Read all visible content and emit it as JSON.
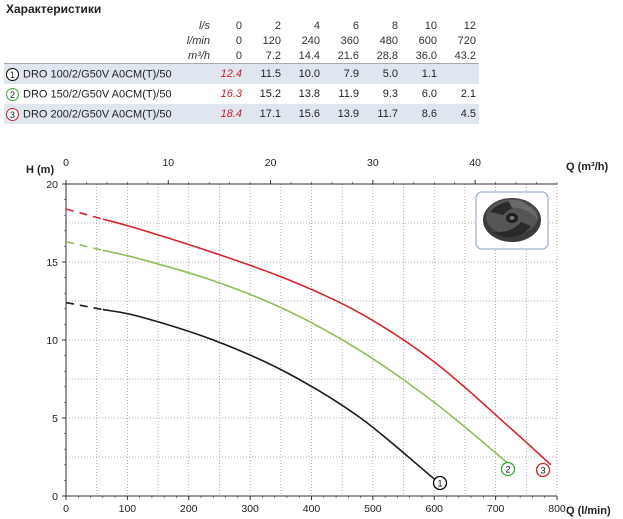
{
  "header": {
    "title": "Характеристики"
  },
  "table": {
    "unit_rows": [
      {
        "unit": "l/s",
        "values": [
          "0",
          "2",
          "4",
          "6",
          "8",
          "10",
          "12"
        ]
      },
      {
        "unit": "l/min",
        "values": [
          "0",
          "120",
          "240",
          "360",
          "480",
          "600",
          "720"
        ]
      },
      {
        "unit": "m³/h",
        "values": [
          "0",
          "7.2",
          "14.4",
          "21.6",
          "28.8",
          "36.0",
          "43.2"
        ]
      }
    ],
    "models": [
      {
        "badge": "1",
        "name": "DRO 100/2/G50V A0CM(T)/50",
        "h0": "12.4",
        "values": [
          "11.5",
          "10.0",
          "7.9",
          "5.0",
          "1.1",
          ""
        ]
      },
      {
        "badge": "2",
        "name": "DRO 150/2/G50V A0CM(T)/50",
        "h0": "16.3",
        "values": [
          "15.2",
          "13.8",
          "11.9",
          "9.3",
          "6.0",
          "2.1"
        ]
      },
      {
        "badge": "3",
        "name": "DRO 200/2/G50V A0CM(T)/50",
        "h0": "18.4",
        "values": [
          "17.1",
          "15.6",
          "13.9",
          "11.7",
          "8.6",
          "4.5"
        ]
      }
    ]
  },
  "colors": {
    "curve_1": "#1a1a1a",
    "curve_2": "#8fbf5a",
    "curve_3": "#d9232a",
    "badge_2": "#3aa33a",
    "badge_3": "#c81f25",
    "h0_value": "#c81f25",
    "table_shade": "#dfe6f0",
    "grid": "#9a9a9a"
  },
  "icons": {
    "impeller": "impeller-icon"
  },
  "chart_data": {
    "type": "line",
    "ylabel": "H (m)",
    "xlabel": "Q (l/min)",
    "x2label": "Q (m³/h)",
    "xlim": [
      0,
      800
    ],
    "ylim": [
      0,
      20
    ],
    "x2lim": [
      0,
      48
    ],
    "xticks": [
      "0",
      "100",
      "200",
      "300",
      "400",
      "500",
      "600",
      "700",
      "800"
    ],
    "x2ticks": [
      "0",
      "10",
      "20",
      "30",
      "40"
    ],
    "yticks": [
      "0",
      "5",
      "10",
      "15",
      "20"
    ],
    "grid": "dotted",
    "series": [
      {
        "name": "1",
        "x": [
          0,
          120,
          240,
          360,
          480,
          600,
          615
        ],
        "y": [
          12.4,
          11.5,
          10.0,
          7.9,
          5.0,
          1.1,
          0.8
        ],
        "dashed_until_x": 60
      },
      {
        "name": "2",
        "x": [
          0,
          120,
          240,
          360,
          480,
          600,
          720,
          725
        ],
        "y": [
          16.3,
          15.2,
          13.8,
          11.9,
          9.3,
          6.0,
          2.1,
          1.9
        ],
        "dashed_until_x": 60
      },
      {
        "name": "3",
        "x": [
          0,
          120,
          240,
          360,
          480,
          600,
          720,
          790
        ],
        "y": [
          18.4,
          17.1,
          15.6,
          13.9,
          11.7,
          8.6,
          4.5,
          2.0
        ],
        "dashed_until_x": 60
      }
    ]
  }
}
